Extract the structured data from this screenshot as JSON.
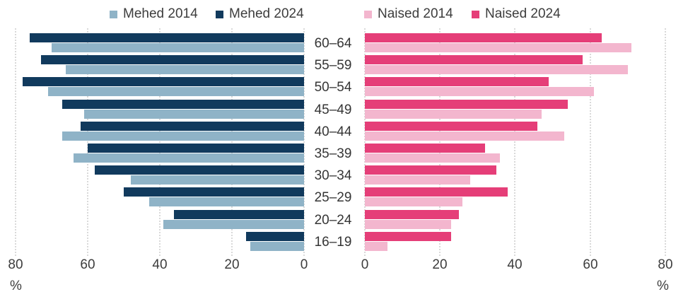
{
  "legend": [
    {
      "label": "Mehed 2014",
      "color": "#8fb3c7"
    },
    {
      "label": "Mehed 2024",
      "color": "#113a5d"
    },
    {
      "label": "Naised 2014",
      "color": "#f3b6ce"
    },
    {
      "label": "Naised 2024",
      "color": "#e53e78"
    }
  ],
  "axis": {
    "left_ticks": [
      "80",
      "60",
      "40",
      "20",
      "0"
    ],
    "right_ticks": [
      "0",
      "20",
      "40",
      "60",
      "80"
    ],
    "unit_label": "%"
  },
  "chart_data": {
    "type": "bar",
    "variant": "horizontal back-to-back pyramid, values in percent",
    "categories": [
      "60–64",
      "55–59",
      "50–54",
      "45–49",
      "40–44",
      "35–39",
      "30–34",
      "25–29",
      "20–24",
      "16–19"
    ],
    "series": [
      {
        "name": "Mehed 2014",
        "side": "left",
        "color": "#8fb3c7",
        "values": [
          70,
          66,
          71,
          61,
          67,
          64,
          48,
          43,
          39,
          15
        ]
      },
      {
        "name": "Mehed 2024",
        "side": "left",
        "color": "#113a5d",
        "values": [
          76,
          73,
          78,
          67,
          62,
          60,
          58,
          50,
          36,
          16
        ]
      },
      {
        "name": "Naised 2014",
        "side": "right",
        "color": "#f3b6ce",
        "values": [
          71,
          70,
          61,
          47,
          53,
          36,
          28,
          26,
          23,
          6
        ]
      },
      {
        "name": "Naised 2024",
        "side": "right",
        "color": "#e53e78",
        "values": [
          63,
          58,
          49,
          54,
          46,
          32,
          35,
          38,
          25,
          23
        ]
      }
    ],
    "xlim": [
      0,
      80
    ],
    "grid": "dotted vertical gridlines every 20 on both halves",
    "legend_position": "top",
    "bar_order_within_group": "2024 bar on top, 2014 bar below"
  }
}
